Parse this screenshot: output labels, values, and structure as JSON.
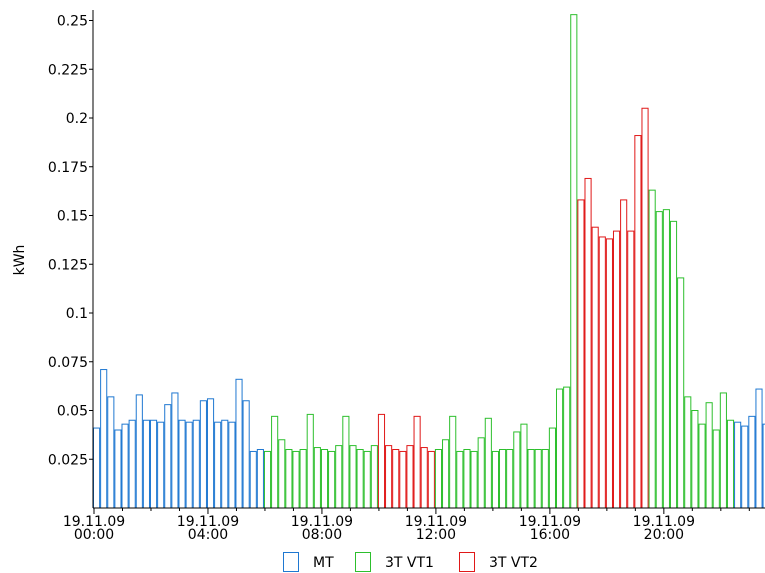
{
  "chart_data": {
    "type": "bar",
    "title": "",
    "xlabel": "",
    "ylabel": "kWh",
    "ylim": [
      0,
      0.25
    ],
    "yticks": [
      "0.025",
      "0.05",
      "0.075",
      "0.1",
      "0.125",
      "0.15",
      "0.175",
      "0.2",
      "0.225",
      "0.25"
    ],
    "xtick_labels": [
      {
        "date": "19.11.09",
        "time": "00:00"
      },
      {
        "date": "19.11.09",
        "time": "04:00"
      },
      {
        "date": "19.11.09",
        "time": "08:00"
      },
      {
        "date": "19.11.09",
        "time": "12:00"
      },
      {
        "date": "19.11.09",
        "time": "16:00"
      },
      {
        "date": "19.11.09",
        "time": "20:00"
      }
    ],
    "interval_minutes": 15,
    "grid": false,
    "legend_position": "bottom",
    "series": [
      {
        "name": "MT",
        "color": "#1f78d1"
      },
      {
        "name": "3T VT1",
        "color": "#2dbf2d"
      },
      {
        "name": "3T VT2",
        "color": "#e01818"
      }
    ],
    "values": [
      0.041,
      0.071,
      0.057,
      0.04,
      0.043,
      0.045,
      0.058,
      0.045,
      0.045,
      0.044,
      0.053,
      0.059,
      0.045,
      0.044,
      0.045,
      0.055,
      0.056,
      0.044,
      0.045,
      0.044,
      0.066,
      0.055,
      0.029,
      0.03,
      0.029,
      0.047,
      0.035,
      0.03,
      0.029,
      0.03,
      0.048,
      0.031,
      0.03,
      0.029,
      0.032,
      0.047,
      0.032,
      0.03,
      0.029,
      0.032,
      0.048,
      0.032,
      0.03,
      0.029,
      0.032,
      0.047,
      0.031,
      0.029,
      0.03,
      0.035,
      0.047,
      0.029,
      0.03,
      0.029,
      0.036,
      0.046,
      0.029,
      0.03,
      0.03,
      0.039,
      0.043,
      0.03,
      0.03,
      0.03,
      0.041,
      0.061,
      0.062,
      0.253,
      0.158,
      0.169,
      0.144,
      0.139,
      0.138,
      0.142,
      0.158,
      0.142,
      0.191,
      0.205,
      0.163,
      0.152,
      0.153,
      0.147,
      0.118,
      0.057,
      0.05,
      0.043,
      0.054,
      0.04,
      0.059,
      0.045,
      0.044,
      0.042,
      0.047,
      0.061,
      0.043
    ],
    "series_index": [
      0,
      0,
      0,
      0,
      0,
      0,
      0,
      0,
      0,
      0,
      0,
      0,
      0,
      0,
      0,
      0,
      0,
      0,
      0,
      0,
      0,
      0,
      0,
      0,
      1,
      1,
      1,
      1,
      1,
      1,
      1,
      1,
      1,
      1,
      1,
      1,
      1,
      1,
      1,
      1,
      2,
      2,
      2,
      2,
      2,
      2,
      2,
      2,
      1,
      1,
      1,
      1,
      1,
      1,
      1,
      1,
      1,
      1,
      1,
      1,
      1,
      1,
      1,
      1,
      1,
      1,
      1,
      1,
      2,
      2,
      2,
      2,
      2,
      2,
      2,
      2,
      2,
      2,
      1,
      1,
      1,
      1,
      1,
      1,
      1,
      1,
      1,
      1,
      1,
      1,
      0,
      0,
      0,
      0,
      0
    ]
  }
}
